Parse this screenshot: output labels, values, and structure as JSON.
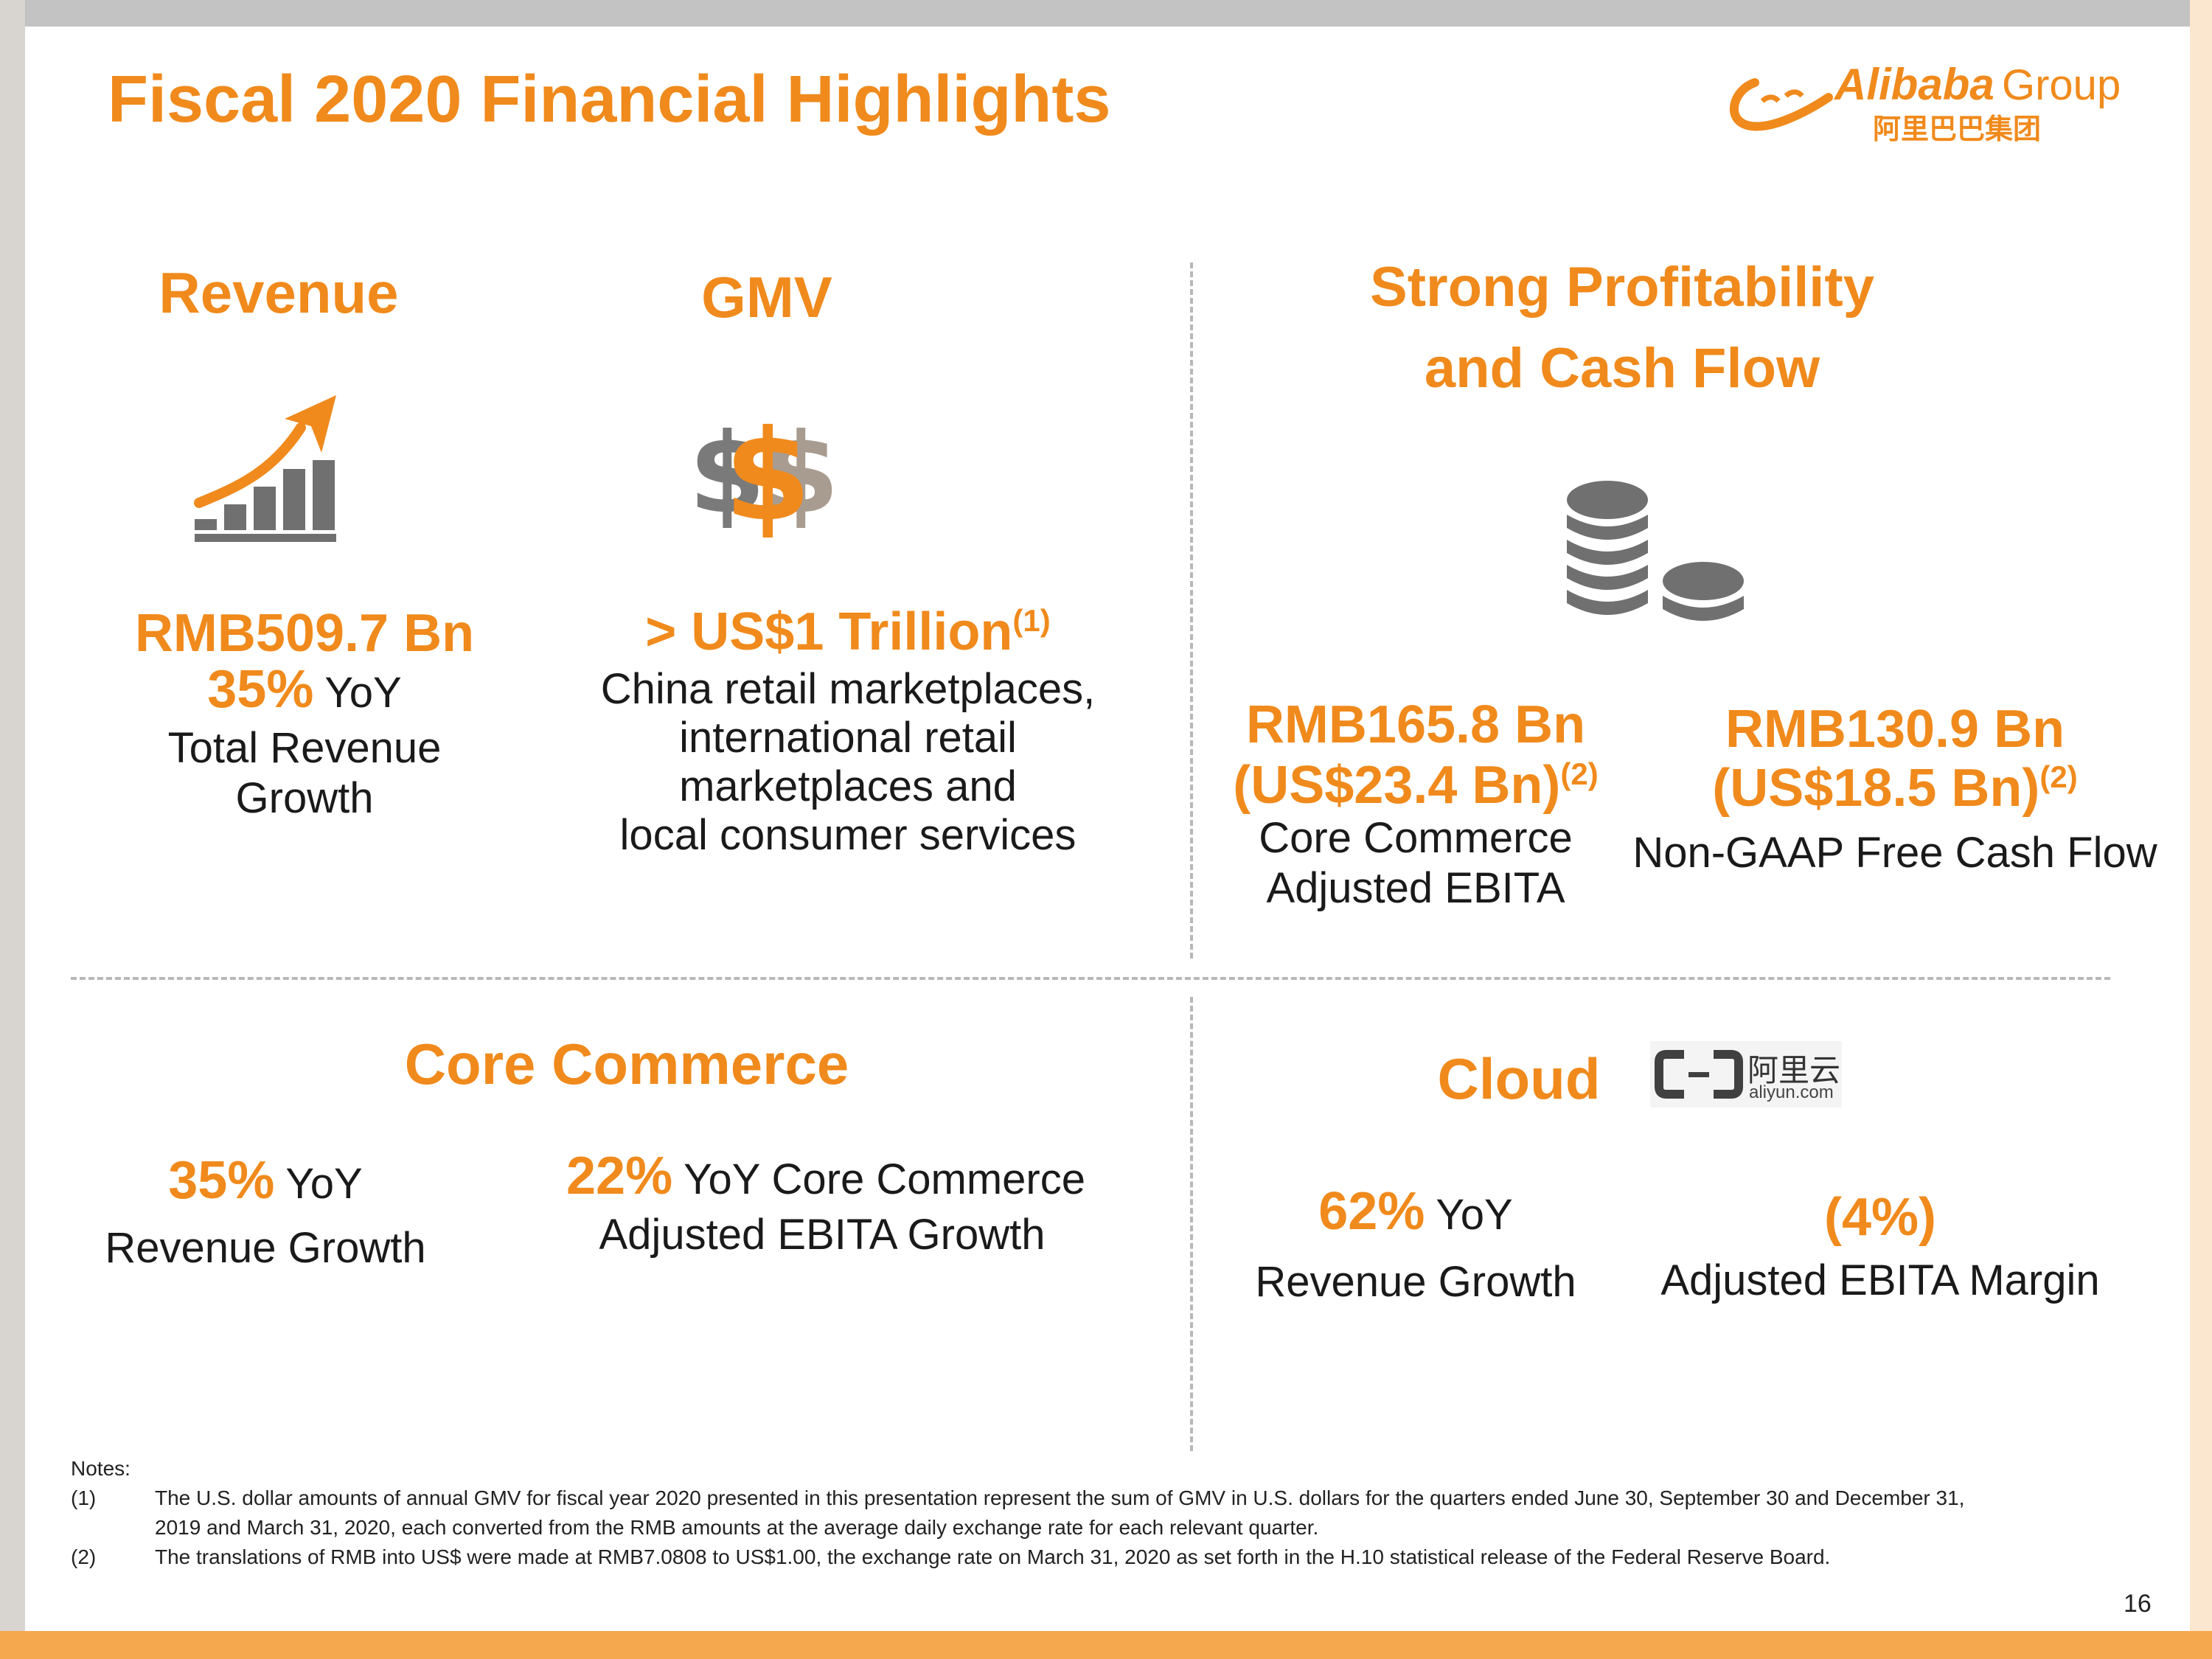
{
  "header": {
    "title": "Fiscal 2020 Financial Highlights"
  },
  "logo": {
    "brand": "Alibaba",
    "group": "Group",
    "chinese": "阿里巴巴集团"
  },
  "revenue": {
    "heading": "Revenue",
    "icon": "growth-bar-chart-icon",
    "amount": "RMB509.7 Bn",
    "pct": "35%",
    "yoy": " YoY",
    "desc_line1": "Total Revenue",
    "desc_line2": "Growth"
  },
  "gmv": {
    "heading": "GMV",
    "icon": "dollar-signs-icon",
    "amount": "> US$1 Trillion",
    "note_ref": "(1)",
    "desc_line1": "China retail marketplaces,",
    "desc_line2": "international retail",
    "desc_line3": "marketplaces and",
    "desc_line4": "local consumer services"
  },
  "profitability": {
    "heading_line1": "Strong Profitability",
    "heading_line2": "and Cash Flow",
    "icon": "coin-stacks-icon",
    "ebita": {
      "amount": "RMB165.8 Bn",
      "usd": "(US$23.4 Bn)",
      "note_ref": "(2)",
      "desc_line1": "Core Commerce",
      "desc_line2": "Adjusted EBITA"
    },
    "fcf": {
      "amount": "RMB130.9 Bn",
      "usd": "(US$18.5 Bn)",
      "note_ref": "(2)",
      "desc": "Non-GAAP Free Cash Flow"
    }
  },
  "core_commerce": {
    "heading": "Core Commerce",
    "revenue": {
      "pct": "35%",
      "yoy": " YoY",
      "desc": "Revenue Growth"
    },
    "ebita": {
      "pct": "22%",
      "desc_line1": " YoY Core Commerce",
      "desc_line2": "Adjusted EBITA Growth"
    }
  },
  "cloud": {
    "heading": "Cloud",
    "logo_chinese": "阿里云",
    "logo_domain": "aliyun.com",
    "revenue": {
      "pct": "62%",
      "yoy": " YoY",
      "desc": "Revenue Growth"
    },
    "margin": {
      "value": "(4%)",
      "desc": "Adjusted EBITA Margin"
    }
  },
  "notes": {
    "label": "Notes:",
    "n1_num": "(1)",
    "n1_line1": "The U.S. dollar amounts of annual GMV for fiscal year 2020 presented in this presentation represent the sum of GMV in U.S. dollars for the quarters ended June 30, September 30 and December 31,",
    "n1_line2": "2019 and March 31, 2020, each converted from the RMB amounts at the average daily exchange rate for each relevant quarter.",
    "n2_num": "(2)",
    "n2_line1": "The translations of RMB into US$ were made at RMB7.0808 to US$1.00, the exchange rate on March 31, 2020 as set forth in the H.10 statistical release of the Federal Reserve Board."
  },
  "page_number": "16",
  "colors": {
    "accent": "#f08a1c",
    "icon_gray": "#707070",
    "divider": "#b8b8b8",
    "bottom_bar": "#f6a84e"
  }
}
